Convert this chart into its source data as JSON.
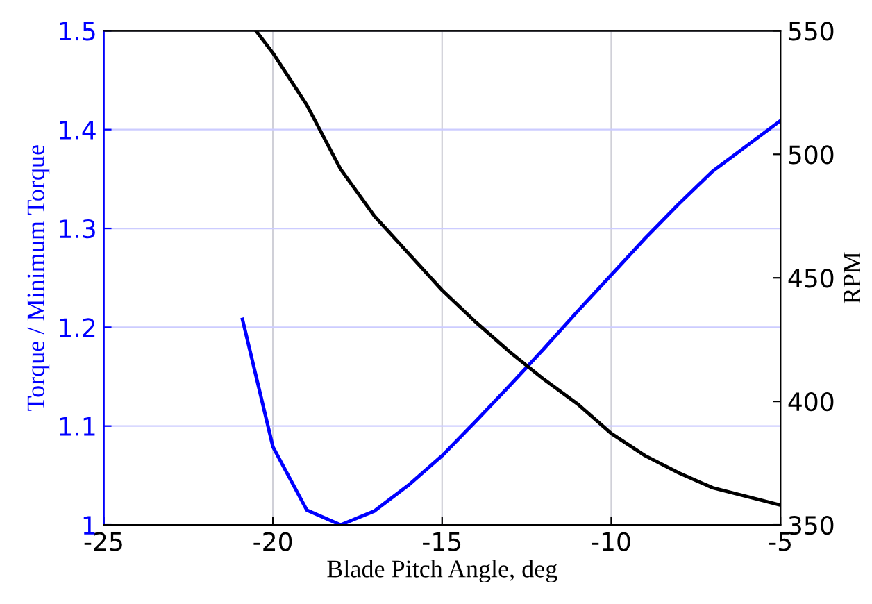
{
  "chart_data": {
    "type": "line",
    "xlabel": "Blade Pitch Angle, deg",
    "ylabel": "Torque / Minimum Torque",
    "y2label": "RPM",
    "xlim": [
      -25,
      -5
    ],
    "xticks": [
      -25,
      -20,
      -15,
      -10,
      -5
    ],
    "ylim": [
      1,
      1.5
    ],
    "yticks": [
      1,
      1.1,
      1.2,
      1.3,
      1.4,
      1.5
    ],
    "y2lim": [
      350,
      550
    ],
    "y2ticks": [
      350,
      400,
      450,
      500,
      550
    ],
    "grid": true,
    "marker": "none",
    "line_style": "solid",
    "series": [
      {
        "color": "#0000ff",
        "x": [
          -20.9,
          -20,
          -19,
          -18,
          -17,
          -16,
          -15,
          -14,
          -13,
          -12,
          -11,
          -10,
          -9,
          -8,
          -7,
          -5
        ],
        "values": [
          1.208,
          1.079,
          1.015,
          1.0,
          1.014,
          1.04,
          1.07,
          1.105,
          1.141,
          1.178,
          1.216,
          1.253,
          1.29,
          1.325,
          1.358,
          1.409
        ]
      },
      {
        "color": "#000000",
        "axis": "y2",
        "x": [
          -20.5,
          -20,
          -19,
          -18,
          -17,
          -16,
          -15,
          -14,
          -13,
          -12,
          -11,
          -10,
          -9,
          -8,
          -7,
          -5
        ],
        "values": [
          550,
          541,
          520,
          494,
          475,
          460,
          445,
          432,
          420,
          409,
          399,
          387,
          378,
          371,
          365,
          358
        ]
      }
    ]
  }
}
